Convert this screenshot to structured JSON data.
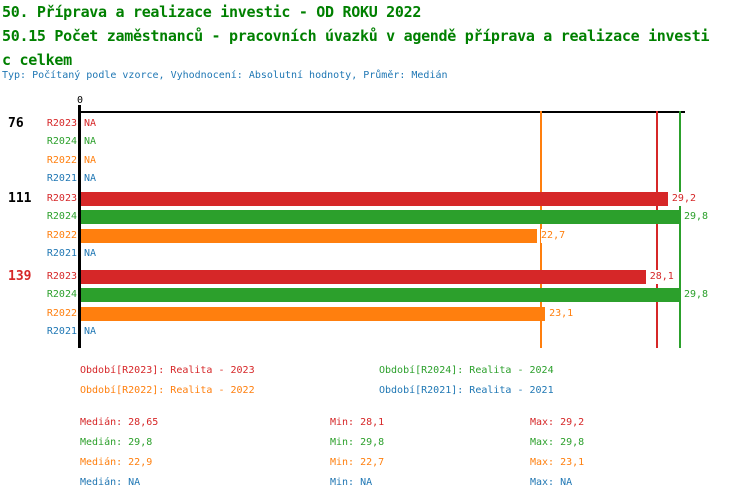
{
  "header": {
    "title_line1": "50. Příprava a realizace investic - OD ROKU 2022",
    "title_line2": "50.15 Počet zaměstnanců - pracovních úvazků v agendě příprava a realizace investi",
    "title_line3": "c celkem",
    "meta": "Typ: Počítaný podle vzorce, Vyhodnocení: Absolutní hodnoty, Průměr: Medián",
    "title_color": "#008000",
    "meta_color": "#1f77b4"
  },
  "chart_data": {
    "type": "bar",
    "orientation": "horizontal",
    "title": "50.15 Počet zaměstnanců - pracovních úvazků v agendě příprava a realizace investic celkem",
    "xlabel": "",
    "ylabel": "",
    "xlim": [
      0,
      33.3
    ],
    "grid": false,
    "axis_zero_label": "0",
    "axis_color": "#000000",
    "series_colors": {
      "R2023": "#d62728",
      "R2024": "#2ca02c",
      "R2022": "#ff7f0e",
      "R2021": "#1f77b4"
    },
    "groups": [
      {
        "label": "76",
        "label_color": "#000000",
        "rows": [
          {
            "series": "R2023",
            "value": null,
            "display": "NA"
          },
          {
            "series": "R2024",
            "value": null,
            "display": "NA"
          },
          {
            "series": "R2022",
            "value": null,
            "display": "NA"
          },
          {
            "series": "R2021",
            "value": null,
            "display": "NA"
          }
        ]
      },
      {
        "label": "111",
        "label_color": "#000000",
        "rows": [
          {
            "series": "R2023",
            "value": 29.2,
            "display": "29,2"
          },
          {
            "series": "R2024",
            "value": 29.8,
            "display": "29,8"
          },
          {
            "series": "R2022",
            "value": 22.7,
            "display": "22,7"
          },
          {
            "series": "R2021",
            "value": null,
            "display": "NA"
          }
        ]
      },
      {
        "label": "139",
        "label_color": "#d62728",
        "rows": [
          {
            "series": "R2023",
            "value": 28.1,
            "display": "28,1"
          },
          {
            "series": "R2024",
            "value": 29.8,
            "display": "29,8"
          },
          {
            "series": "R2022",
            "value": 23.1,
            "display": "23,1"
          },
          {
            "series": "R2021",
            "value": null,
            "display": "NA"
          }
        ]
      }
    ],
    "median_lines": [
      {
        "series": "R2022",
        "value": 22.9,
        "color": "#ff7f0e"
      },
      {
        "series": "R2023",
        "value": 28.65,
        "color": "#d62728"
      },
      {
        "series": "R2024",
        "value": 29.8,
        "color": "#2ca02c"
      }
    ],
    "summary": {
      "R2023": {
        "median": 28.65,
        "min": 28.1,
        "max": 29.2
      },
      "R2024": {
        "median": 29.8,
        "min": 29.8,
        "max": 29.8
      },
      "R2022": {
        "median": 22.9,
        "min": 22.7,
        "max": 23.1
      },
      "R2021": {
        "median": null,
        "min": null,
        "max": null
      }
    }
  },
  "legend": {
    "items": [
      {
        "label": "Období[R2023]: Realita - 2023",
        "color": "#d62728"
      },
      {
        "label": "Období[R2024]: Realita - 2024",
        "color": "#2ca02c"
      },
      {
        "label": "Období[R2022]: Realita - 2022",
        "color": "#ff7f0e"
      },
      {
        "label": "Období[R2021]: Realita - 2021",
        "color": "#1f77b4"
      }
    ]
  },
  "stats": {
    "rows": [
      {
        "color": "#d62728",
        "cells": [
          "Medián: 28,65",
          "Min: 28,1",
          "Max: 29,2"
        ]
      },
      {
        "color": "#2ca02c",
        "cells": [
          "Medián: 29,8",
          "Min: 29,8",
          "Max: 29,8"
        ]
      },
      {
        "color": "#ff7f0e",
        "cells": [
          "Medián: 22,9",
          "Min: 22,7",
          "Max: 23,1"
        ]
      },
      {
        "color": "#1f77b4",
        "cells": [
          "Medián: NA",
          "Min: NA",
          "Max: NA"
        ]
      }
    ]
  }
}
